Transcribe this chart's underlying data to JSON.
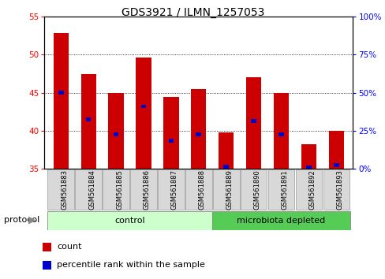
{
  "title": "GDS3921 / ILMN_1257053",
  "samples": [
    "GSM561883",
    "GSM561884",
    "GSM561885",
    "GSM561886",
    "GSM561887",
    "GSM561888",
    "GSM561889",
    "GSM561890",
    "GSM561891",
    "GSM561892",
    "GSM561893"
  ],
  "count_values": [
    52.8,
    47.5,
    45.0,
    49.6,
    44.5,
    45.5,
    39.8,
    47.0,
    45.0,
    38.2,
    40.0
  ],
  "percentile_values": [
    45.0,
    41.5,
    39.5,
    43.2,
    38.7,
    39.5,
    35.3,
    41.3,
    39.5,
    35.2,
    35.5
  ],
  "ylim_left": [
    35,
    55
  ],
  "yticks_left": [
    35,
    40,
    45,
    50,
    55
  ],
  "ylim_right": [
    0,
    100
  ],
  "yticks_right": [
    0,
    25,
    50,
    75,
    100
  ],
  "bar_color": "#cc0000",
  "dot_color": "#0000cc",
  "bar_width": 0.55,
  "ctrl_count": 6,
  "micro_count": 5,
  "control_color": "#ccffcc",
  "microbiota_color": "#55cc55",
  "control_label": "control",
  "microbiota_label": "microbiota depleted",
  "protocol_label": "protocol",
  "legend_count": "count",
  "legend_percentile": "percentile rank within the sample",
  "title_fontsize": 10,
  "tick_fontsize": 7.5,
  "label_fontsize": 8
}
